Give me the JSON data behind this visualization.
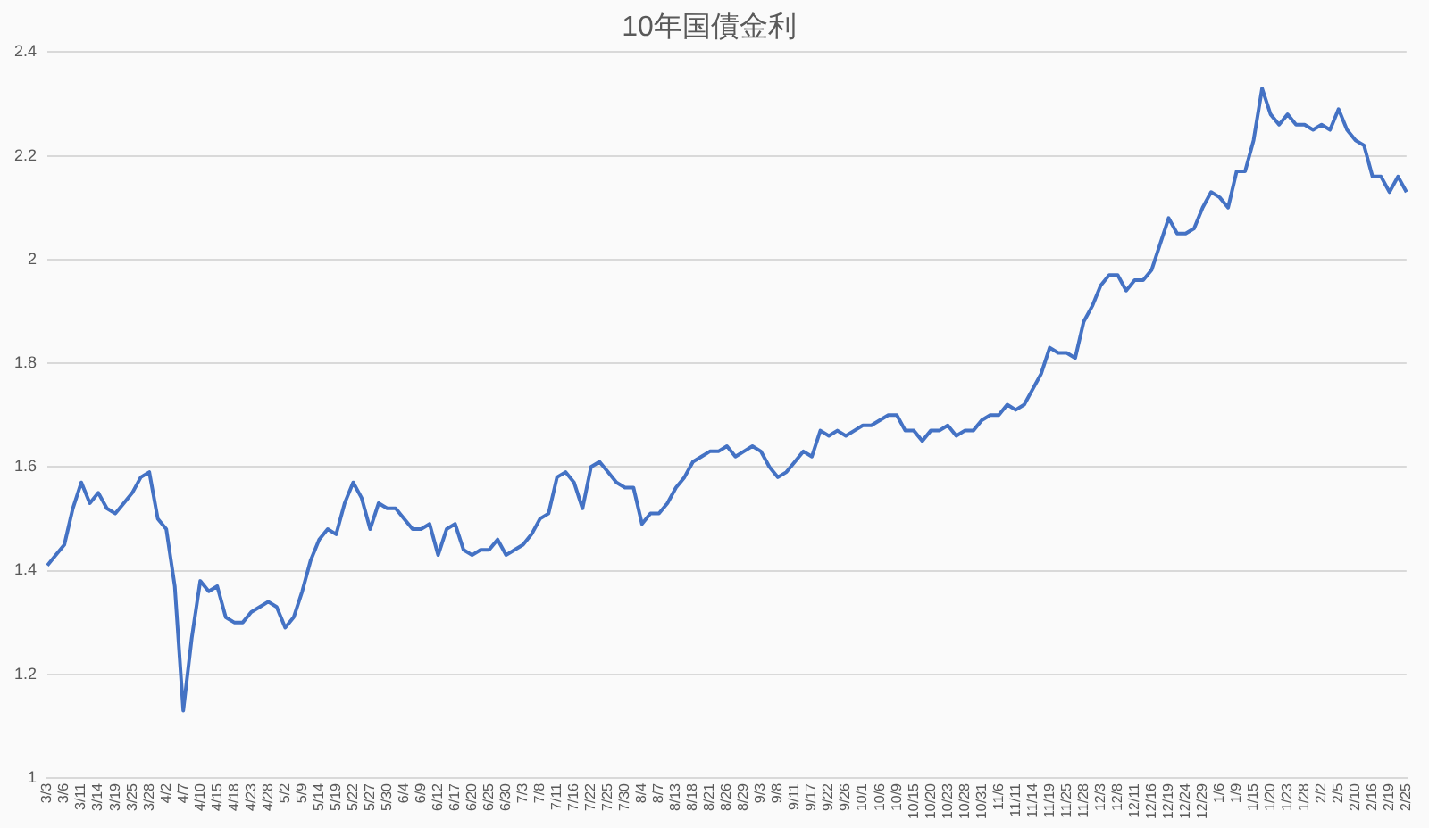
{
  "chart_data": {
    "type": "line",
    "title": "10年国債金利",
    "categories": [
      "3/3",
      null,
      "3/6",
      null,
      "3/11",
      null,
      "3/14",
      null,
      "3/19",
      null,
      "3/25",
      null,
      "3/28",
      null,
      "4/2",
      null,
      "4/7",
      null,
      "4/10",
      null,
      "4/15",
      null,
      "4/18",
      null,
      "4/23",
      null,
      "4/28",
      null,
      "5/2",
      null,
      "5/9",
      null,
      "5/14",
      null,
      "5/19",
      null,
      "5/22",
      null,
      "5/27",
      null,
      "5/30",
      null,
      "6/4",
      null,
      "6/9",
      null,
      "6/12",
      null,
      "6/17",
      null,
      "6/20",
      null,
      "6/25",
      null,
      "6/30",
      null,
      "7/3",
      null,
      "7/8",
      null,
      "7/11",
      null,
      "7/16",
      null,
      "7/22",
      null,
      "7/25",
      null,
      "7/30",
      null,
      "8/4",
      null,
      "8/7",
      null,
      "8/13",
      null,
      "8/18",
      null,
      "8/21",
      null,
      "8/26",
      null,
      "8/29",
      null,
      "9/3",
      null,
      "9/8",
      null,
      "9/11",
      null,
      "9/17",
      null,
      "9/22",
      null,
      "9/26",
      null,
      "10/1",
      null,
      "10/6",
      null,
      "10/9",
      null,
      "10/15",
      null,
      "10/20",
      null,
      "10/23",
      null,
      "10/28",
      null,
      "10/31",
      null,
      "11/6",
      null,
      "11/11",
      null,
      "11/14",
      null,
      "11/19",
      null,
      "11/25",
      null,
      "11/28",
      null,
      "12/3",
      null,
      "12/8",
      null,
      "12/11",
      null,
      "12/16",
      null,
      "12/19",
      null,
      "12/24",
      null,
      "12/29",
      null,
      "1/6",
      null,
      "1/9",
      null,
      "1/15",
      null,
      "1/20",
      null,
      "1/23",
      null,
      "1/28",
      null,
      "2/2",
      null,
      "2/5",
      null,
      "2/10",
      null,
      "2/16",
      null,
      "2/19",
      null,
      "2/25"
    ],
    "series": [
      {
        "color": "#4472c4",
        "values": [
          1.41,
          1.43,
          1.45,
          1.52,
          1.57,
          1.53,
          1.55,
          1.52,
          1.51,
          1.53,
          1.55,
          1.58,
          1.59,
          1.5,
          1.48,
          1.37,
          1.13,
          1.27,
          1.38,
          1.36,
          1.37,
          1.31,
          1.3,
          1.3,
          1.32,
          1.33,
          1.34,
          1.33,
          1.29,
          1.31,
          1.36,
          1.42,
          1.46,
          1.48,
          1.47,
          1.53,
          1.57,
          1.54,
          1.48,
          1.53,
          1.52,
          1.52,
          1.5,
          1.48,
          1.48,
          1.49,
          1.43,
          1.48,
          1.49,
          1.44,
          1.43,
          1.44,
          1.44,
          1.46,
          1.43,
          1.44,
          1.45,
          1.47,
          1.5,
          1.51,
          1.58,
          1.59,
          1.57,
          1.52,
          1.6,
          1.61,
          1.59,
          1.57,
          1.56,
          1.56,
          1.49,
          1.51,
          1.51,
          1.53,
          1.56,
          1.58,
          1.61,
          1.62,
          1.63,
          1.63,
          1.64,
          1.62,
          1.63,
          1.64,
          1.63,
          1.6,
          1.58,
          1.59,
          1.61,
          1.63,
          1.62,
          1.67,
          1.66,
          1.67,
          1.66,
          1.67,
          1.68,
          1.68,
          1.69,
          1.7,
          1.7,
          1.67,
          1.67,
          1.65,
          1.67,
          1.67,
          1.68,
          1.66,
          1.67,
          1.67,
          1.69,
          1.7,
          1.7,
          1.72,
          1.71,
          1.72,
          1.75,
          1.78,
          1.83,
          1.82,
          1.82,
          1.81,
          1.88,
          1.91,
          1.95,
          1.97,
          1.97,
          1.94,
          1.96,
          1.96,
          1.98,
          2.03,
          2.08,
          2.05,
          2.05,
          2.06,
          2.1,
          2.13,
          2.12,
          2.1,
          2.17,
          2.17,
          2.23,
          2.33,
          2.28,
          2.26,
          2.28,
          2.26,
          2.26,
          2.25,
          2.26,
          2.25,
          2.29,
          2.25,
          2.23,
          2.22,
          2.16,
          2.16,
          2.13,
          2.16,
          2.13
        ]
      }
    ],
    "ylim": [
      1,
      2.4
    ],
    "yticks": [
      1,
      1.2,
      1.4,
      1.6,
      1.8,
      2,
      2.2,
      2.4
    ],
    "grid": "y",
    "marker": "none",
    "line_style": "solid"
  }
}
